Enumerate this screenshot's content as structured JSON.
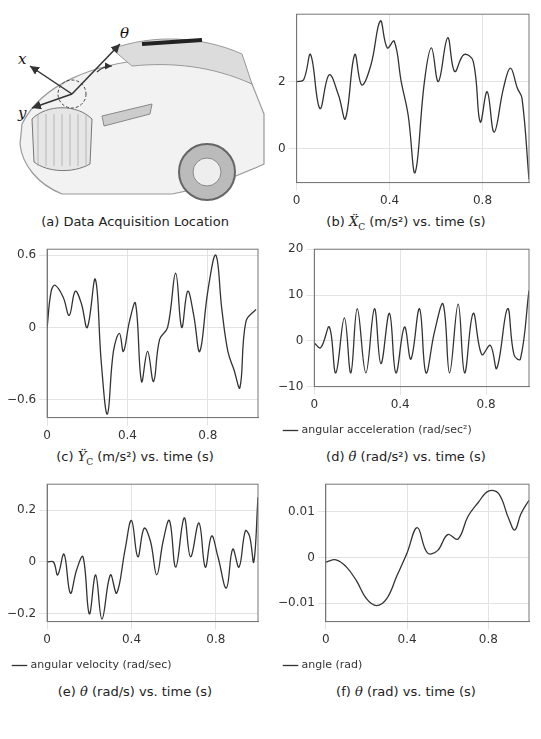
{
  "image_panel": {
    "title": {
      "label": "(a)",
      "text": "Data Acquisition Location"
    },
    "labels": [
      "x",
      "y",
      "θ"
    ]
  },
  "chart_data": [
    {
      "type": "line",
      "title": {
        "label": "(b)",
        "symbol": "Ẍ",
        "subscript": "C",
        "text": "(m/s²) vs. time (s)"
      },
      "x": [
        0,
        0.03,
        0.06,
        0.1,
        0.14,
        0.18,
        0.21,
        0.25,
        0.28,
        0.32,
        0.36,
        0.39,
        0.42,
        0.45,
        0.48,
        0.51,
        0.55,
        0.58,
        0.61,
        0.65,
        0.68,
        0.72,
        0.76,
        0.79,
        0.82,
        0.85,
        0.89,
        0.92,
        0.95,
        0.97,
        1.0
      ],
      "series": [
        {
          "color": "#333333",
          "values": [
            2.0,
            2.05,
            2.8,
            1.2,
            2.2,
            1.6,
            0.9,
            2.8,
            1.9,
            2.5,
            3.8,
            3.0,
            3.2,
            2.0,
            1.0,
            -0.7,
            2.0,
            3.0,
            2.0,
            3.3,
            2.3,
            2.8,
            2.6,
            0.8,
            1.7,
            0.5,
            1.8,
            2.4,
            1.8,
            1.5,
            -0.9
          ]
        }
      ],
      "xlim": [
        0,
        1
      ],
      "xticks": [
        0,
        0.4,
        0.8
      ],
      "ylim": [
        -1,
        4
      ],
      "yticks": [
        0,
        2
      ],
      "grid": true
    },
    {
      "type": "line",
      "title": {
        "label": "(c)",
        "symbol": "Ÿ",
        "subscript": "C",
        "text": "(m/s²) vs. time (s)"
      },
      "x": [
        0,
        0.02,
        0.04,
        0.08,
        0.11,
        0.14,
        0.17,
        0.2,
        0.24,
        0.27,
        0.3,
        0.33,
        0.36,
        0.38,
        0.41,
        0.44,
        0.47,
        0.5,
        0.53,
        0.56,
        0.6,
        0.64,
        0.67,
        0.7,
        0.73,
        0.76,
        0.8,
        0.84,
        0.87,
        0.9,
        0.93,
        0.96,
        0.99,
        1.04
      ],
      "series": [
        {
          "color": "#333333",
          "values": [
            0.0,
            0.3,
            0.35,
            0.25,
            0.1,
            0.3,
            0.2,
            0.0,
            0.4,
            -0.3,
            -0.72,
            -0.2,
            -0.05,
            -0.2,
            0.05,
            0.2,
            -0.45,
            -0.2,
            -0.45,
            -0.1,
            0.0,
            0.45,
            0.0,
            0.3,
            0.1,
            -0.2,
            0.3,
            0.6,
            0.15,
            -0.2,
            -0.35,
            -0.5,
            0.05,
            0.15
          ]
        }
      ],
      "xlim": [
        0,
        1.05
      ],
      "xticks": [
        0,
        0.4,
        0.8
      ],
      "ylim": [
        -0.75,
        0.65
      ],
      "yticks": [
        {
          "value": -0.6,
          "label": "−0.6"
        },
        0,
        0.6
      ],
      "grid": true
    },
    {
      "type": "line",
      "title": {
        "label": "(d)",
        "symbol": "θ̈",
        "text": "(rad/s²) vs. time (s)"
      },
      "x": [
        0,
        0.03,
        0.07,
        0.1,
        0.14,
        0.17,
        0.2,
        0.24,
        0.28,
        0.31,
        0.35,
        0.38,
        0.42,
        0.45,
        0.49,
        0.52,
        0.56,
        0.6,
        0.63,
        0.67,
        0.7,
        0.74,
        0.78,
        0.82,
        0.85,
        0.9,
        0.93,
        0.96,
        1.0
      ],
      "series": [
        {
          "name": "angular acceleration (rad/sec²)",
          "color": "#333333",
          "values": [
            -0.5,
            -1.5,
            3,
            -7,
            5,
            -7,
            7,
            -7,
            7,
            -5,
            6,
            -7,
            3,
            -4,
            7,
            -7,
            2,
            8,
            -7,
            8,
            -7,
            6,
            -3,
            -1,
            -6,
            7,
            -3,
            -4,
            11
          ]
        }
      ],
      "xlim": [
        0,
        1
      ],
      "xticks": [
        0,
        0.4,
        0.8
      ],
      "ylim": [
        -10,
        20
      ],
      "yticks": [
        {
          "value": -10,
          "label": "−10"
        },
        0,
        10,
        20
      ],
      "grid": true,
      "legend": "bottom"
    },
    {
      "type": "line",
      "title": {
        "label": "(e)",
        "symbol": "θ̇",
        "text": "(rad/s) vs. time (s)"
      },
      "x": [
        0,
        0.03,
        0.05,
        0.08,
        0.11,
        0.14,
        0.17,
        0.2,
        0.23,
        0.26,
        0.3,
        0.33,
        0.37,
        0.4,
        0.43,
        0.46,
        0.49,
        0.52,
        0.55,
        0.58,
        0.61,
        0.65,
        0.68,
        0.72,
        0.75,
        0.78,
        0.81,
        0.85,
        0.88,
        0.91,
        0.94,
        0.96,
        0.98,
        1.0
      ],
      "series": [
        {
          "name": "angular velocity (rad/sec)",
          "color": "#333333",
          "values": [
            0.0,
            0.0,
            -0.05,
            0.03,
            -0.12,
            -0.03,
            0.02,
            -0.2,
            -0.05,
            -0.22,
            -0.05,
            -0.12,
            0.05,
            0.16,
            0.02,
            0.13,
            0.08,
            -0.05,
            0.08,
            0.16,
            -0.02,
            0.17,
            0.02,
            0.15,
            -0.02,
            0.1,
            0.02,
            -0.1,
            0.05,
            -0.02,
            0.12,
            0.1,
            0.0,
            0.25
          ]
        }
      ],
      "xlim": [
        0,
        1
      ],
      "xticks": [
        0,
        0.4,
        0.8
      ],
      "ylim": [
        -0.23,
        0.3
      ],
      "yticks": [
        {
          "value": -0.2,
          "label": "−0.2"
        },
        0,
        0.2
      ],
      "grid": true,
      "legend": "bottom"
    },
    {
      "type": "line",
      "title": {
        "label": "(f)",
        "symbol": "θ",
        "text": "(rad) vs. time (s)"
      },
      "x": [
        0,
        0.05,
        0.1,
        0.15,
        0.2,
        0.25,
        0.3,
        0.35,
        0.4,
        0.45,
        0.5,
        0.55,
        0.6,
        0.65,
        0.7,
        0.75,
        0.8,
        0.85,
        0.9,
        0.93,
        0.96,
        1.0
      ],
      "series": [
        {
          "name": "angle (rad)",
          "color": "#333333",
          "values": [
            -0.001,
            -0.0005,
            -0.002,
            -0.005,
            -0.009,
            -0.0105,
            -0.009,
            -0.004,
            0.001,
            0.0065,
            0.001,
            0.0015,
            0.005,
            0.004,
            0.009,
            0.012,
            0.0145,
            0.014,
            0.0085,
            0.006,
            0.0095,
            0.0125
          ]
        }
      ],
      "xlim": [
        0,
        1
      ],
      "xticks": [
        0,
        0.4,
        0.8
      ],
      "ylim": [
        -0.014,
        0.016
      ],
      "yticks": [
        {
          "value": -0.01,
          "label": "−0.01"
        },
        0,
        0.01
      ],
      "grid": true,
      "legend": "bottom"
    }
  ]
}
